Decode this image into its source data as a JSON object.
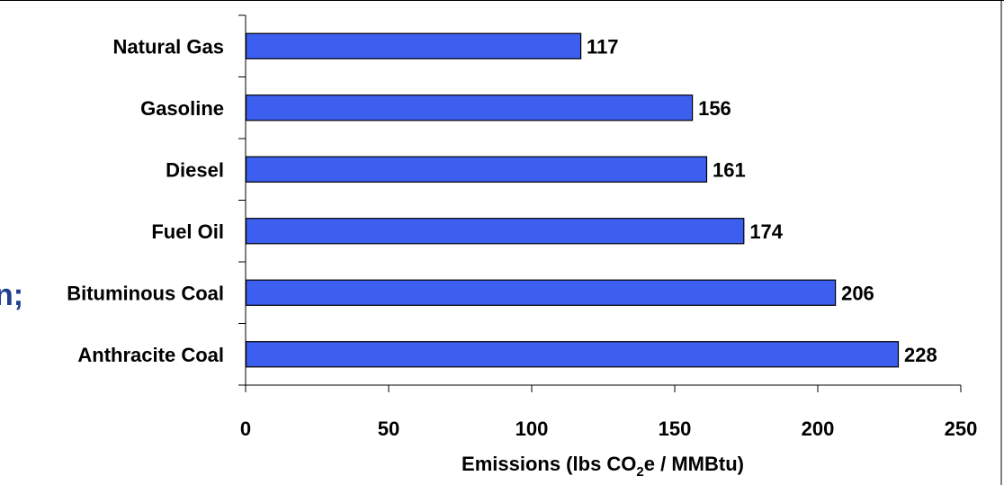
{
  "page": {
    "edge_fragment": "n;"
  },
  "chart_data": {
    "type": "bar",
    "orientation": "horizontal",
    "categories": [
      "Natural Gas",
      "Gasoline",
      "Diesel",
      "Fuel Oil",
      "Bituminous Coal",
      "Anthracite Coal"
    ],
    "values": [
      117,
      156,
      161,
      174,
      206,
      228
    ],
    "value_labels": [
      "117",
      "156",
      "161",
      "174",
      "206",
      "228"
    ],
    "title": "",
    "xlabel_parts": {
      "before": "Emissions (lbs CO",
      "subscript": "2",
      "after": "e / MMBtu)"
    },
    "ylabel": "",
    "xlim": [
      0,
      250
    ],
    "xticks": [
      0,
      50,
      100,
      150,
      200,
      250
    ],
    "grid": false,
    "legend": "none",
    "bar_color": "#3d5ff0",
    "bar_edge_color": "#000000"
  }
}
